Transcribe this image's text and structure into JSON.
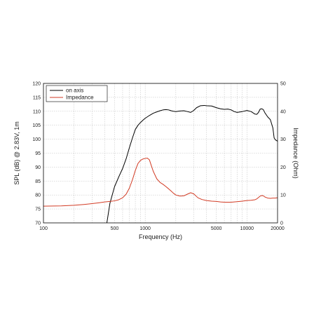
{
  "chart_data": {
    "type": "line",
    "xlabel": "Frequency (Hz)",
    "ylabel": "SPL (dB) @ 2.83V, 1m",
    "y2label": "Impedance (Ohm)",
    "x_scale": "log",
    "xlim": [
      100,
      20000
    ],
    "ylim": [
      70,
      120
    ],
    "y2lim": [
      0,
      50
    ],
    "grid": true,
    "legend_position": "top-left",
    "x_tick_labels": [
      "100",
      "500",
      "1000",
      "5000",
      "10000",
      "20000"
    ],
    "y_tick_labels": [
      "70",
      "75",
      "80",
      "85",
      "90",
      "95",
      "100",
      "105",
      "110",
      "115",
      "120"
    ],
    "y2_tick_labels": [
      "0",
      "10",
      "20",
      "30",
      "40",
      "50"
    ],
    "series": [
      {
        "name": "on axis",
        "axis": "left",
        "color": "#000000",
        "x": [
          420,
          450,
          500,
          550,
          600,
          650,
          700,
          750,
          800,
          850,
          900,
          950,
          1000,
          1100,
          1200,
          1300,
          1400,
          1500,
          1600,
          1700,
          1800,
          1900,
          2000,
          2200,
          2400,
          2600,
          2800,
          3000,
          3200,
          3500,
          3800,
          4000,
          4500,
          5000,
          5500,
          6000,
          6500,
          7000,
          7500,
          8000,
          9000,
          10000,
          11000,
          12000,
          12500,
          13000,
          13500,
          14000,
          14500,
          15000,
          16000,
          17000,
          18000,
          18500,
          19000,
          20000
        ],
        "values": [
          70,
          77,
          83,
          86.5,
          89.5,
          93,
          97,
          100.5,
          103.5,
          105,
          106,
          106.8,
          107.5,
          108.5,
          109.3,
          109.8,
          110.2,
          110.5,
          110.6,
          110.5,
          110.2,
          110.0,
          109.9,
          110.1,
          110.2,
          109.9,
          109.6,
          110.3,
          111.3,
          112.0,
          112.1,
          112.0,
          111.9,
          111.3,
          110.9,
          110.7,
          110.8,
          110.5,
          109.9,
          109.6,
          109.9,
          110.3,
          109.9,
          109.0,
          108.9,
          109.6,
          110.8,
          110.9,
          110.6,
          109.5,
          108.0,
          107.0,
          104.0,
          100.5,
          99.8,
          99.3
        ]
      },
      {
        "name": "Impedance",
        "axis": "right",
        "color": "#d23b24",
        "x": [
          100,
          150,
          200,
          250,
          300,
          350,
          400,
          450,
          500,
          550,
          600,
          650,
          700,
          750,
          800,
          850,
          900,
          950,
          1000,
          1050,
          1100,
          1150,
          1200,
          1300,
          1400,
          1500,
          1600,
          1700,
          1800,
          1900,
          2000,
          2200,
          2400,
          2600,
          2800,
          3000,
          3300,
          3600,
          4000,
          4500,
          5000,
          5500,
          6000,
          7000,
          8000,
          9000,
          10000,
          11000,
          12000,
          12500,
          13000,
          13500,
          14000,
          14500,
          15000,
          16000,
          17000,
          18000,
          19000,
          20000
        ],
        "values": [
          6.0,
          6.1,
          6.3,
          6.6,
          6.9,
          7.2,
          7.5,
          7.7,
          7.9,
          8.3,
          9.0,
          10.3,
          12.5,
          15.5,
          18.8,
          21.3,
          22.4,
          22.9,
          23.1,
          23.2,
          22.6,
          20.5,
          18.5,
          15.8,
          14.5,
          13.8,
          13.0,
          12.2,
          11.4,
          10.6,
          10.0,
          9.6,
          9.7,
          10.3,
          10.8,
          10.4,
          9.0,
          8.4,
          8.0,
          7.8,
          7.7,
          7.5,
          7.4,
          7.4,
          7.6,
          7.8,
          8.0,
          8.1,
          8.3,
          8.6,
          9.1,
          9.6,
          9.8,
          9.7,
          9.3,
          8.9,
          8.8,
          8.9,
          8.9,
          9.0
        ]
      }
    ]
  }
}
